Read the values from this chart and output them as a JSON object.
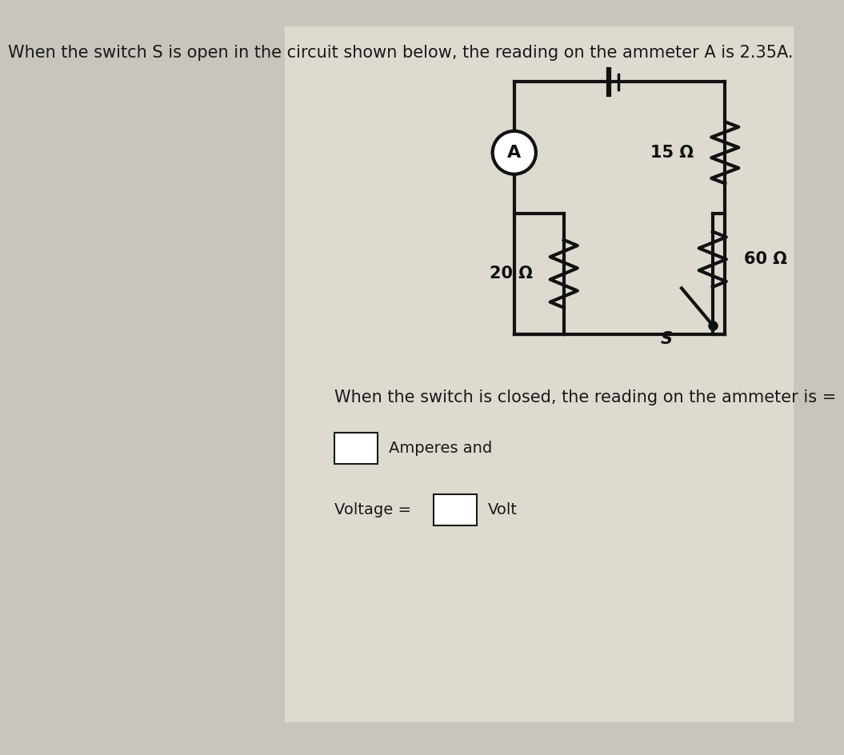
{
  "bg_color_outer": "#c8c5bc",
  "bg_color_inner": "#dedad0",
  "bg_color_white": "#e8e4da",
  "text_color": "#1a1a1a",
  "circuit_color": "#111111",
  "title_text1": "When the switch S is open in the circuit shown below, the reading on the ammeter A is 2.35A.",
  "question_text": "When the switch is closed, the reading on the ammeter is =",
  "amperes_label": "Amperes and",
  "voltage_label": "Voltage =",
  "volt_label": "Volt",
  "r1_label": "15 Ω",
  "r2_label": "20 Ω",
  "r3_label": "60 Ω",
  "switch_label": "S",
  "ammeter_label": "A",
  "font_size_title": 15,
  "font_size_circuit": 15,
  "font_size_question": 15,
  "font_size_answer": 14
}
